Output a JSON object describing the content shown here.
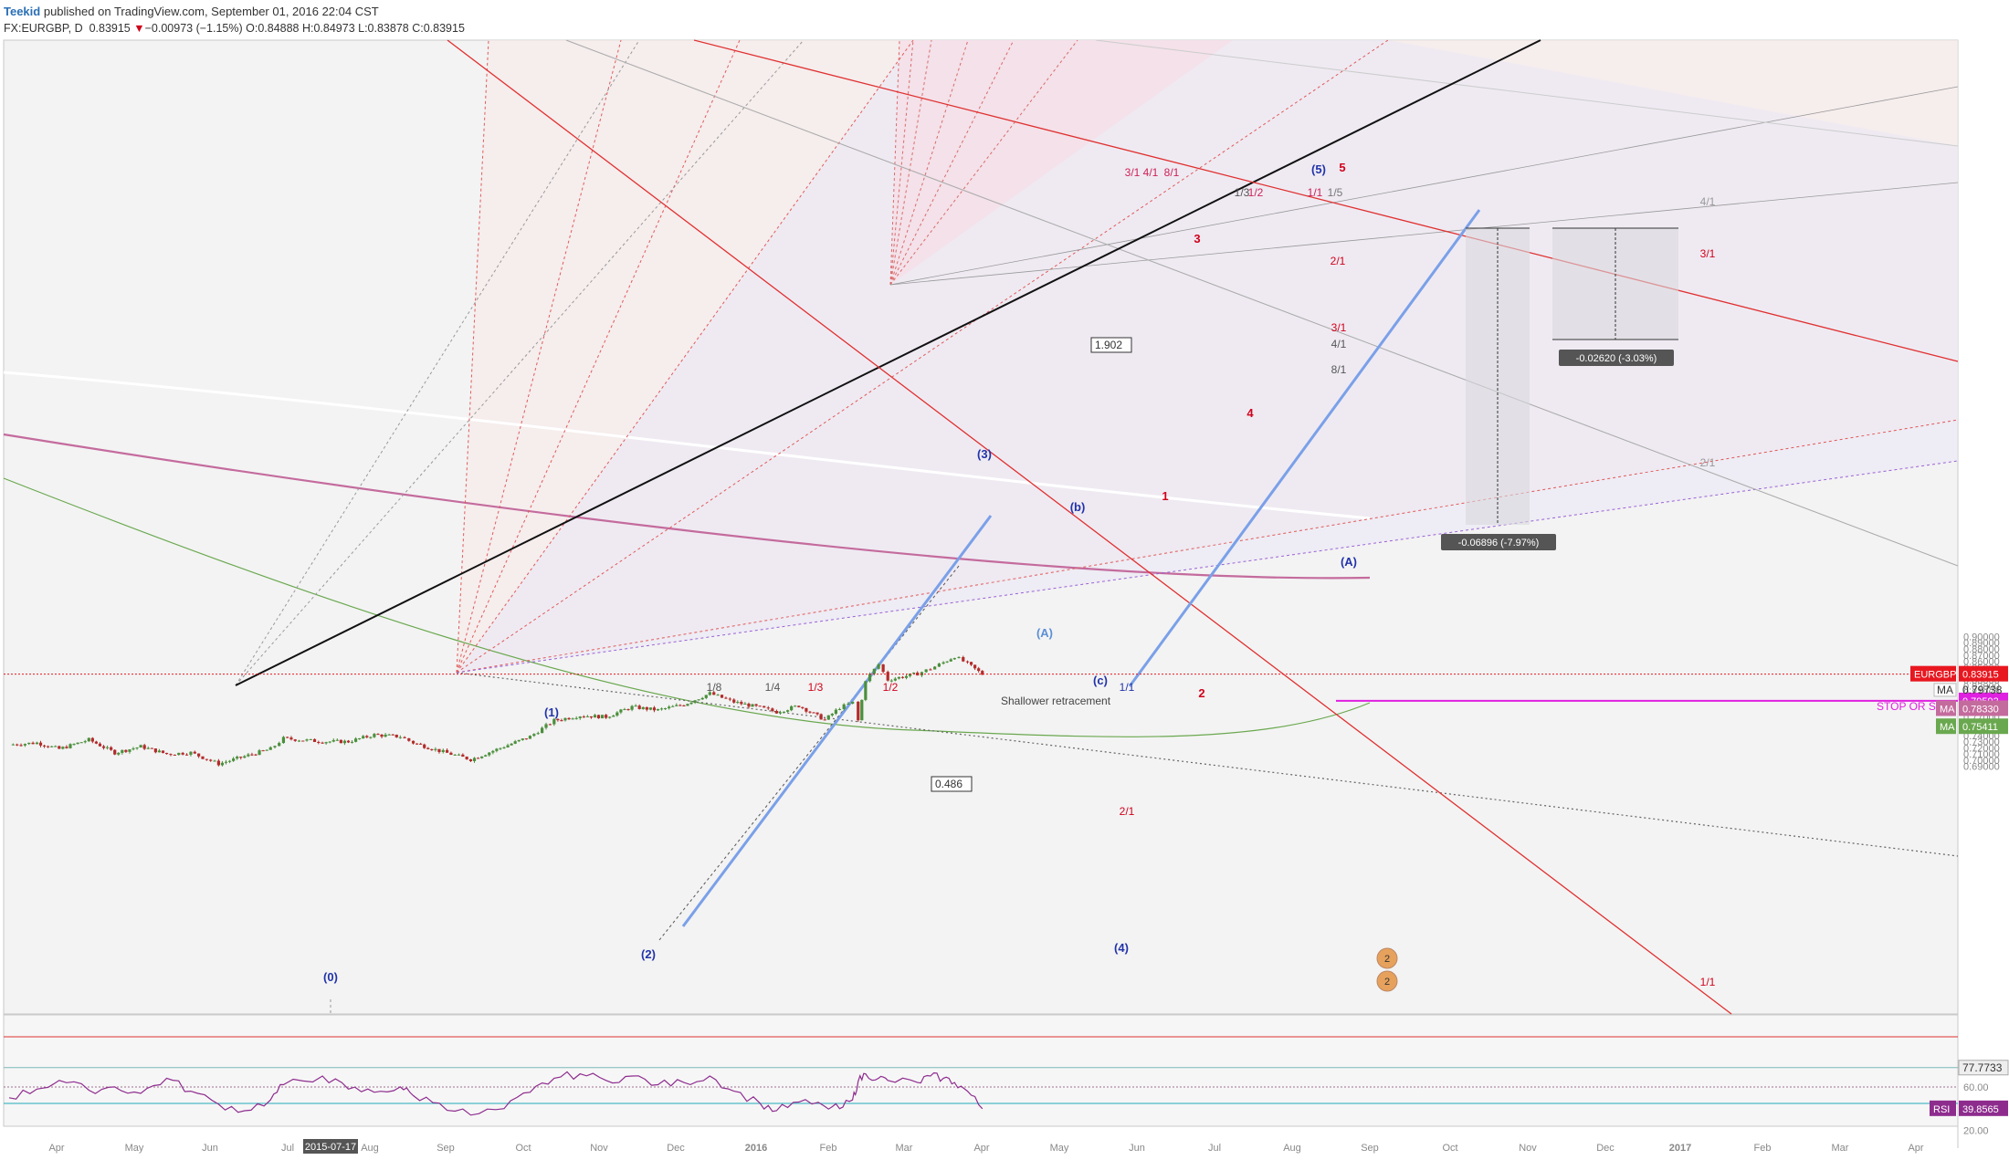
{
  "header": {
    "brand": "Teekid",
    "published": "published on TradingView.com, September 01, 2016 22:04 CST",
    "symbol": "FX:EURGBP, D",
    "last": "0.83915",
    "change_arrow": "▼",
    "change": "−0.00973 (−1.15%)",
    "ohlc": "O:0.84888 H:0.84973 L:0.83878 C:0.83915"
  },
  "colors": {
    "up_candle": "#4a8f3c",
    "down_candle": "#b32b2b",
    "price_tag": "#e8171f",
    "stop_line": "#e020e0",
    "ma_pink": "#c46b9d",
    "ma_green": "#6aa84f",
    "trend_blue": "#7aa0e8",
    "rsi_line": "#8e2c8e"
  },
  "chart_data": [
    {
      "type": "candlestick",
      "title": "FX:EURGBP, D",
      "ylim": [
        0.68,
        0.91
      ],
      "y_ticks": [
        0.69,
        0.7,
        0.71,
        0.72,
        0.73,
        0.74,
        0.75,
        0.76,
        0.77,
        0.78,
        0.79,
        0.8,
        0.81,
        0.82,
        0.83,
        0.84,
        0.85,
        0.86,
        0.87,
        0.88,
        0.89,
        0.9
      ],
      "x_labels": [
        "Apr",
        "May",
        "Jun",
        "Jul",
        "2015-07-17",
        "Aug",
        "Sep",
        "Oct",
        "Nov",
        "Dec",
        "2016",
        "Feb",
        "Mar",
        "Apr",
        "May",
        "Jun",
        "Jul",
        "Aug",
        "Sep",
        "Oct",
        "Nov",
        "Dec",
        "2017",
        "Feb",
        "Mar",
        "Apr"
      ],
      "close_path": [
        [
          "2015-03-26",
          0.725
        ],
        [
          "2015-04-10",
          0.728
        ],
        [
          "2015-04-22",
          0.718
        ],
        [
          "2015-05-08",
          0.733
        ],
        [
          "2015-05-22",
          0.712
        ],
        [
          "2015-06-05",
          0.722
        ],
        [
          "2015-06-19",
          0.71
        ],
        [
          "2015-07-02",
          0.712
        ],
        [
          "2015-07-17",
          0.694
        ],
        [
          "2015-07-31",
          0.706
        ],
        [
          "2015-08-14",
          0.718
        ],
        [
          "2015-08-21",
          0.735
        ],
        [
          "2015-09-11",
          0.73
        ],
        [
          "2015-09-25",
          0.73
        ],
        [
          "2015-10-09",
          0.741
        ],
        [
          "2015-10-23",
          0.738
        ],
        [
          "2015-10-30",
          0.728
        ],
        [
          "2015-11-13",
          0.715
        ],
        [
          "2015-11-30",
          0.701
        ],
        [
          "2015-12-18",
          0.722
        ],
        [
          "2016-01-01",
          0.738
        ],
        [
          "2016-01-14",
          0.764
        ],
        [
          "2016-01-28",
          0.772
        ],
        [
          "2016-02-11",
          0.77
        ],
        [
          "2016-02-25",
          0.786
        ],
        [
          "2016-03-10",
          0.781
        ],
        [
          "2016-03-24",
          0.79
        ],
        [
          "2016-04-07",
          0.808
        ],
        [
          "2016-04-20",
          0.794
        ],
        [
          "2016-05-04",
          0.785
        ],
        [
          "2016-05-13",
          0.778
        ],
        [
          "2016-05-25",
          0.788
        ],
        [
          "2016-06-08",
          0.765
        ],
        [
          "2016-06-16",
          0.785
        ],
        [
          "2016-06-23",
          0.793
        ],
        [
          "2016-06-26",
          0.764
        ],
        [
          "2016-06-30",
          0.83
        ],
        [
          "2016-07-07",
          0.855
        ],
        [
          "2016-07-12",
          0.83
        ],
        [
          "2016-07-28",
          0.84
        ],
        [
          "2016-08-04",
          0.848
        ],
        [
          "2016-08-11",
          0.858
        ],
        [
          "2016-08-17",
          0.868
        ],
        [
          "2016-08-24",
          0.856
        ],
        [
          "2016-09-01",
          0.83915
        ]
      ],
      "last_close": {
        "label": "EURGBP",
        "value": "0.83915"
      },
      "stop_level": {
        "label": "STOP OR SAR",
        "value": "0.79593"
      },
      "moving_averages": [
        {
          "label": "MA",
          "value": "0.79738"
        },
        {
          "label": "MA",
          "value": "0.78330"
        },
        {
          "label": "MA",
          "value": "0.75411"
        }
      ],
      "elliott_waves": [
        "(0)",
        "(1)",
        "(2)",
        "(3)",
        "(4)",
        "(5)",
        "1",
        "2",
        "3",
        "4",
        "5",
        "(A)",
        "(A)",
        "(c)",
        "(b)"
      ],
      "gann_fan_labels": [
        "1/8",
        "1/4",
        "1/3",
        "1/2",
        "1/1",
        "2/1",
        "3/1",
        "4/1",
        "8/1",
        "1/5",
        "1/3",
        "1/2",
        "1/1",
        "2/1",
        "3/1",
        "4/1",
        "8/1",
        "4/1",
        "3/1",
        "2/1",
        "1/1"
      ],
      "fib_labels": [
        "1.902",
        "0.486"
      ],
      "measurements": [
        "-0.06896 (-7.97%)",
        "-0.02620 (-3.03%)"
      ],
      "annotations": [
        "Shallower retracement"
      ]
    },
    {
      "type": "line",
      "title": "RSI",
      "ylim": [
        10,
        85
      ],
      "y_ticks": [
        20.0,
        60.0
      ],
      "levels": [
        {
          "label": "",
          "value": "77.7733"
        },
        {
          "label": "RSI",
          "value": "39.8565"
        }
      ],
      "values": [
        50,
        58,
        66,
        57,
        60,
        54,
        68,
        56,
        44,
        38,
        48,
        62,
        70,
        58,
        55,
        60,
        52,
        45,
        34,
        40,
        55,
        68,
        72,
        66,
        70,
        62,
        64,
        70,
        56,
        45,
        38,
        46,
        42,
        40,
        48,
        65,
        72,
        68,
        66,
        64,
        70,
        68,
        64,
        56,
        39.86
      ]
    }
  ]
}
